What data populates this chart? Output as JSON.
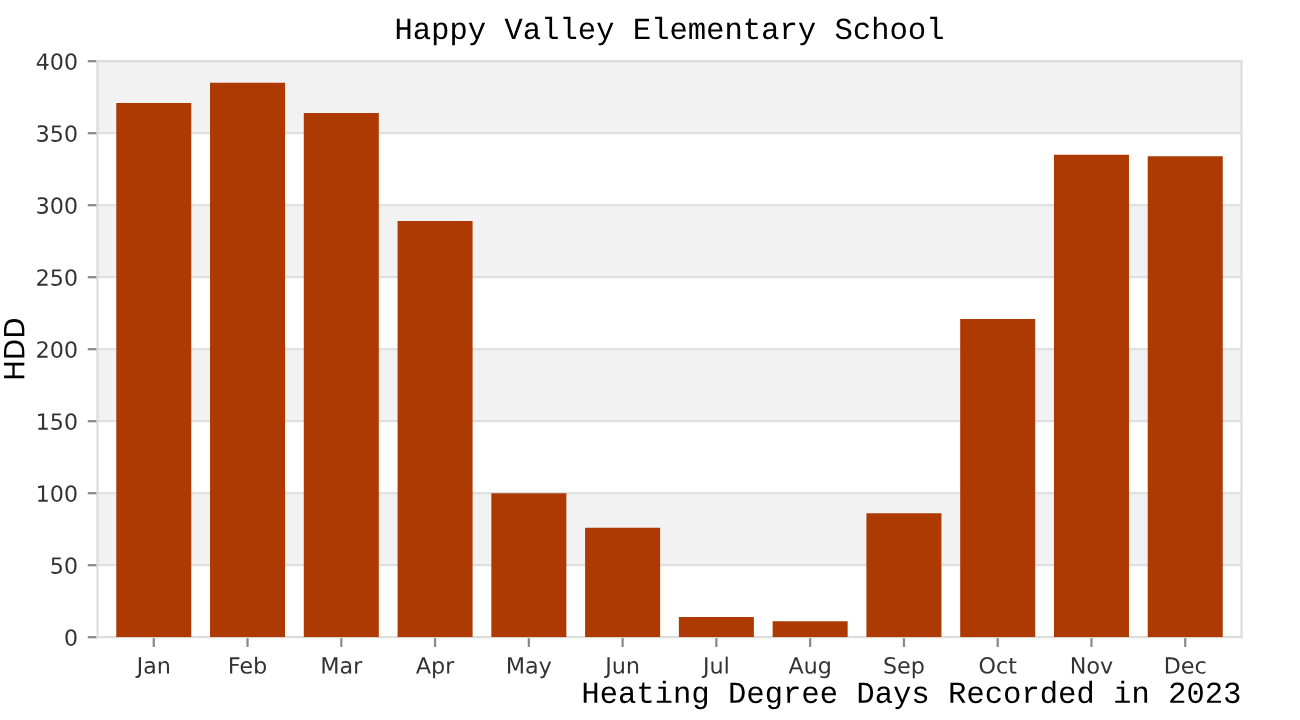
{
  "chart_data": {
    "type": "bar",
    "title": "Happy Valley Elementary School",
    "xlabel": "Heating Degree Days Recorded in 2023",
    "ylabel": "HDD",
    "categories": [
      "Jan",
      "Feb",
      "Mar",
      "Apr",
      "May",
      "Jun",
      "Jul",
      "Aug",
      "Sep",
      "Oct",
      "Nov",
      "Dec"
    ],
    "values": [
      371,
      385,
      364,
      289,
      100,
      76,
      14,
      11,
      86,
      221,
      335,
      334
    ],
    "color": "#ad3a03",
    "ylim": [
      0,
      400
    ],
    "yticks": [
      0,
      50,
      100,
      150,
      200,
      250,
      300,
      350,
      400
    ],
    "grid": "y"
  }
}
